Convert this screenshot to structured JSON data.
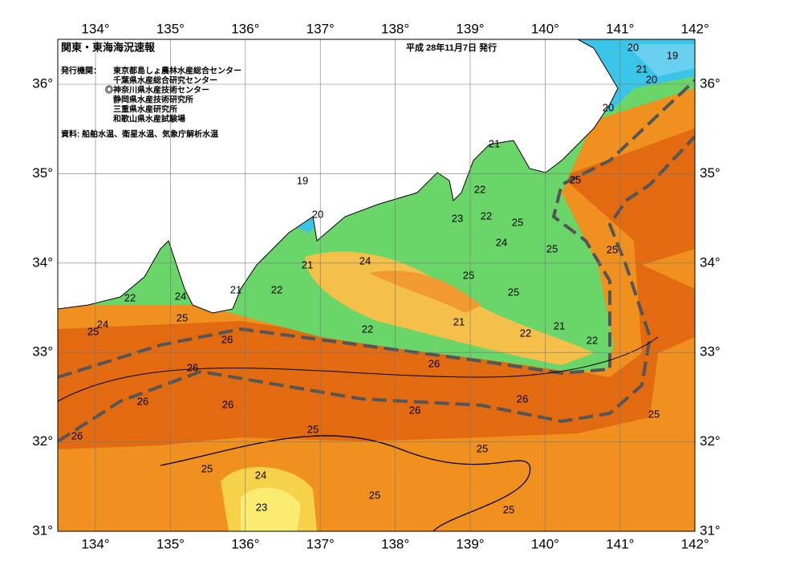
{
  "header": {
    "title": "関東・東海海況速報",
    "date": "平成 28年11月7日 発行",
    "issuer_label": "発行機関：",
    "issuers": [
      "東京都島しょ農林水産総合センター",
      "千葉県水産総合研究センター",
      "◎神奈川県水産技術センター",
      "静岡県水産技術研究所",
      "三重県水産研究所",
      "和歌山県水産試験場"
    ],
    "source": "資料: 船舶水温、衛星水温、気象庁解析水温"
  },
  "map": {
    "lon_ticks": [
      {
        "value": 134,
        "label": "134°"
      },
      {
        "value": 135,
        "label": "135°"
      },
      {
        "value": 136,
        "label": "136°"
      },
      {
        "value": 137,
        "label": "137°"
      },
      {
        "value": 138,
        "label": "138°"
      },
      {
        "value": 139,
        "label": "139°"
      },
      {
        "value": 140,
        "label": "140°"
      },
      {
        "value": 141,
        "label": "141°"
      },
      {
        "value": 142,
        "label": "142°"
      }
    ],
    "lat_ticks": [
      {
        "value": 31,
        "label": "31°"
      },
      {
        "value": 32,
        "label": "32°"
      },
      {
        "value": 33,
        "label": "33°"
      },
      {
        "value": 34,
        "label": "34°"
      },
      {
        "value": 35,
        "label": "35°"
      },
      {
        "value": 36,
        "label": "36°"
      }
    ],
    "contour_labels": [
      20,
      19,
      21,
      20,
      20,
      21,
      19,
      22,
      20,
      22,
      23,
      25,
      24,
      25,
      25,
      25,
      24,
      21,
      25,
      21,
      22,
      25,
      22,
      24,
      24,
      25,
      25,
      22,
      21,
      21,
      22,
      22,
      26,
      26,
      26,
      26,
      26,
      26,
      26,
      25,
      26,
      25,
      25,
      25,
      24,
      25,
      23,
      25
    ]
  }
}
